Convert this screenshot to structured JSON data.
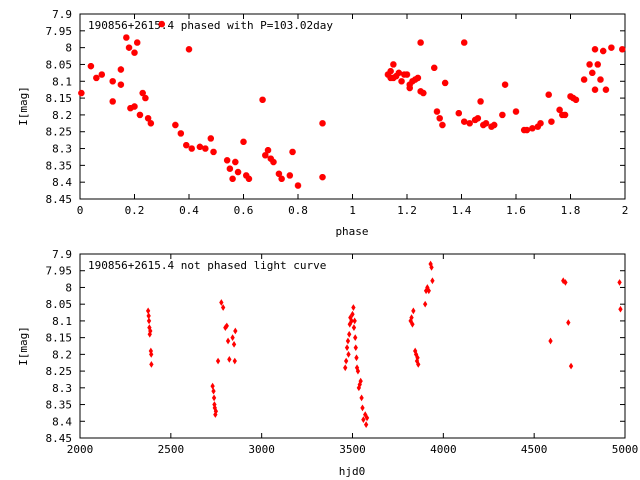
{
  "chart_data": [
    {
      "type": "scatter",
      "title": "190856+2615.4 phased with P=103.02day",
      "xlabel": "phase",
      "ylabel": "I[mag]",
      "xlim": [
        0,
        2
      ],
      "ylim": [
        8.45,
        7.9
      ],
      "y_reversed": true,
      "grid": false,
      "marker_color": "#ff0000",
      "marker_shape": "star",
      "xticks": [
        "0",
        "0.2",
        "0.4",
        "0.6",
        "0.8",
        "1",
        "1.2",
        "1.4",
        "1.6",
        "1.8",
        "2"
      ],
      "yticks": [
        "7.9",
        "7.95",
        "8",
        "8.05",
        "8.1",
        "8.15",
        "8.2",
        "8.25",
        "8.3",
        "8.35",
        "8.4",
        "8.45"
      ],
      "points": [
        [
          0.005,
          8.135
        ],
        [
          0.04,
          8.055
        ],
        [
          0.06,
          8.09
        ],
        [
          0.08,
          8.08
        ],
        [
          0.12,
          8.16
        ],
        [
          0.12,
          8.1
        ],
        [
          0.15,
          8.11
        ],
        [
          0.15,
          8.065
        ],
        [
          0.17,
          7.97
        ],
        [
          0.18,
          8.0
        ],
        [
          0.185,
          8.18
        ],
        [
          0.2,
          8.175
        ],
        [
          0.2,
          8.015
        ],
        [
          0.21,
          7.985
        ],
        [
          0.22,
          8.2
        ],
        [
          0.23,
          8.135
        ],
        [
          0.24,
          8.15
        ],
        [
          0.25,
          8.21
        ],
        [
          0.26,
          8.225
        ],
        [
          0.3,
          7.93
        ],
        [
          0.35,
          8.23
        ],
        [
          0.37,
          8.255
        ],
        [
          0.39,
          8.29
        ],
        [
          0.4,
          8.005
        ],
        [
          0.41,
          8.3
        ],
        [
          0.44,
          8.295
        ],
        [
          0.46,
          8.3
        ],
        [
          0.48,
          8.27
        ],
        [
          0.49,
          8.31
        ],
        [
          0.54,
          8.335
        ],
        [
          0.55,
          8.36
        ],
        [
          0.56,
          8.39
        ],
        [
          0.57,
          8.34
        ],
        [
          0.58,
          8.37
        ],
        [
          0.6,
          8.28
        ],
        [
          0.61,
          8.38
        ],
        [
          0.62,
          8.39
        ],
        [
          0.67,
          8.155
        ],
        [
          0.68,
          8.32
        ],
        [
          0.69,
          8.305
        ],
        [
          0.7,
          8.33
        ],
        [
          0.71,
          8.34
        ],
        [
          0.73,
          8.375
        ],
        [
          0.74,
          8.39
        ],
        [
          0.77,
          8.38
        ],
        [
          0.78,
          8.31
        ],
        [
          0.8,
          8.41
        ],
        [
          0.89,
          8.385
        ],
        [
          0.89,
          8.225
        ],
        [
          1.13,
          8.08
        ],
        [
          1.14,
          8.09
        ],
        [
          1.14,
          8.07
        ],
        [
          1.15,
          8.05
        ],
        [
          1.15,
          8.09
        ],
        [
          1.16,
          8.085
        ],
        [
          1.17,
          8.075
        ],
        [
          1.18,
          8.1
        ],
        [
          1.19,
          8.08
        ],
        [
          1.2,
          8.08
        ],
        [
          1.21,
          8.11
        ],
        [
          1.21,
          8.12
        ],
        [
          1.22,
          8.1
        ],
        [
          1.23,
          8.095
        ],
        [
          1.24,
          8.09
        ],
        [
          1.25,
          8.13
        ],
        [
          1.26,
          8.135
        ],
        [
          1.25,
          7.985
        ],
        [
          1.3,
          8.06
        ],
        [
          1.31,
          8.19
        ],
        [
          1.32,
          8.21
        ],
        [
          1.33,
          8.23
        ],
        [
          1.34,
          8.105
        ],
        [
          1.39,
          8.195
        ],
        [
          1.41,
          8.22
        ],
        [
          1.41,
          7.985
        ],
        [
          1.43,
          8.225
        ],
        [
          1.45,
          8.215
        ],
        [
          1.46,
          8.21
        ],
        [
          1.47,
          8.16
        ],
        [
          1.48,
          8.23
        ],
        [
          1.49,
          8.225
        ],
        [
          1.51,
          8.235
        ],
        [
          1.52,
          8.23
        ],
        [
          1.55,
          8.2
        ],
        [
          1.56,
          8.11
        ],
        [
          1.6,
          8.19
        ],
        [
          1.63,
          8.245
        ],
        [
          1.64,
          8.245
        ],
        [
          1.66,
          8.24
        ],
        [
          1.68,
          8.235
        ],
        [
          1.69,
          8.225
        ],
        [
          1.72,
          8.14
        ],
        [
          1.73,
          8.22
        ],
        [
          1.76,
          8.185
        ],
        [
          1.77,
          8.2
        ],
        [
          1.78,
          8.2
        ],
        [
          1.8,
          8.145
        ],
        [
          1.81,
          8.15
        ],
        [
          1.82,
          8.155
        ],
        [
          1.85,
          8.095
        ],
        [
          1.87,
          8.05
        ],
        [
          1.88,
          8.075
        ],
        [
          1.89,
          8.125
        ],
        [
          1.89,
          8.005
        ],
        [
          1.9,
          8.05
        ],
        [
          1.91,
          8.095
        ],
        [
          1.92,
          8.01
        ],
        [
          1.93,
          8.125
        ],
        [
          1.95,
          8.0
        ],
        [
          1.99,
          8.005
        ]
      ]
    },
    {
      "type": "scatter",
      "title": "190856+2615.4 not phased light curve",
      "xlabel": "hjd0",
      "ylabel": "I[mag]",
      "xlim": [
        2000,
        5000
      ],
      "ylim": [
        8.45,
        7.9
      ],
      "y_reversed": true,
      "grid": false,
      "marker_color": "#ff0000",
      "marker_shape": "diamond",
      "xticks": [
        "2000",
        "2500",
        "3000",
        "3500",
        "4000",
        "4500",
        "5000"
      ],
      "yticks": [
        "7.9",
        "7.95",
        "8",
        "8.05",
        "8.1",
        "8.15",
        "8.2",
        "8.25",
        "8.3",
        "8.35",
        "8.4",
        "8.45"
      ],
      "points": [
        [
          2375,
          8.07
        ],
        [
          2378,
          8.085
        ],
        [
          2380,
          8.1
        ],
        [
          2382,
          8.12
        ],
        [
          2384,
          8.14
        ],
        [
          2387,
          8.13
        ],
        [
          2390,
          8.19
        ],
        [
          2392,
          8.2
        ],
        [
          2393,
          8.23
        ],
        [
          2730,
          8.295
        ],
        [
          2735,
          8.31
        ],
        [
          2738,
          8.33
        ],
        [
          2740,
          8.35
        ],
        [
          2742,
          8.36
        ],
        [
          2745,
          8.38
        ],
        [
          2748,
          8.37
        ],
        [
          2760,
          8.22
        ],
        [
          2778,
          8.045
        ],
        [
          2788,
          8.06
        ],
        [
          2800,
          8.12
        ],
        [
          2808,
          8.115
        ],
        [
          2815,
          8.16
        ],
        [
          2822,
          8.215
        ],
        [
          2840,
          8.15
        ],
        [
          2848,
          8.17
        ],
        [
          2852,
          8.22
        ],
        [
          2855,
          8.13
        ],
        [
          3460,
          8.24
        ],
        [
          3465,
          8.22
        ],
        [
          3470,
          8.18
        ],
        [
          3475,
          8.16
        ],
        [
          3478,
          8.2
        ],
        [
          3482,
          8.14
        ],
        [
          3485,
          8.11
        ],
        [
          3488,
          8.09
        ],
        [
          3495,
          8.1
        ],
        [
          3500,
          8.08
        ],
        [
          3505,
          8.06
        ],
        [
          3508,
          8.12
        ],
        [
          3512,
          8.1
        ],
        [
          3515,
          8.15
        ],
        [
          3518,
          8.18
        ],
        [
          3522,
          8.21
        ],
        [
          3525,
          8.24
        ],
        [
          3530,
          8.25
        ],
        [
          3535,
          8.3
        ],
        [
          3540,
          8.29
        ],
        [
          3545,
          8.28
        ],
        [
          3550,
          8.33
        ],
        [
          3555,
          8.36
        ],
        [
          3560,
          8.395
        ],
        [
          3570,
          8.38
        ],
        [
          3575,
          8.41
        ],
        [
          3580,
          8.39
        ],
        [
          3820,
          8.1
        ],
        [
          3825,
          8.09
        ],
        [
          3830,
          8.11
        ],
        [
          3835,
          8.07
        ],
        [
          3845,
          8.19
        ],
        [
          3850,
          8.2
        ],
        [
          3855,
          8.22
        ],
        [
          3858,
          8.21
        ],
        [
          3862,
          8.23
        ],
        [
          3900,
          8.05
        ],
        [
          3905,
          8.01
        ],
        [
          3912,
          8.0
        ],
        [
          3920,
          8.01
        ],
        [
          3930,
          7.93
        ],
        [
          3935,
          7.94
        ],
        [
          3940,
          7.98
        ],
        [
          4590,
          8.16
        ],
        [
          4660,
          7.98
        ],
        [
          4672,
          7.985
        ],
        [
          4688,
          8.105
        ],
        [
          4703,
          8.235
        ],
        [
          4970,
          7.985
        ],
        [
          4975,
          8.065
        ]
      ]
    }
  ]
}
